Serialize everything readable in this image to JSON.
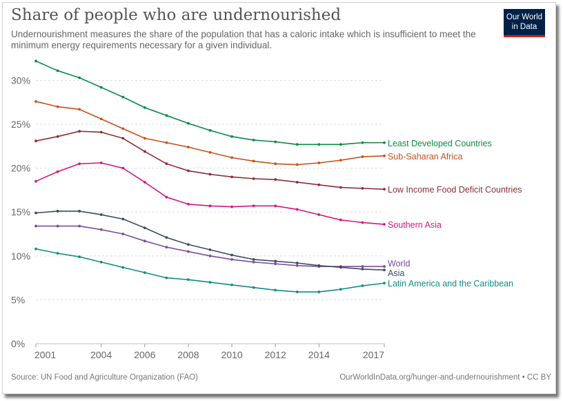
{
  "header": {
    "title": "Share of people who are undernourished",
    "subtitle": "Undernourishment measures the share of the population that has a caloric intake which is insufficient to meet the minimum energy requirements necessary for a given individual.",
    "logo_line1": "Our World",
    "logo_line2": "in Data"
  },
  "footer": {
    "source": "Source: UN Food and Agriculture Organization (FAO)",
    "credit": "OurWorldInData.org/hunger-and-undernourishment • CC BY"
  },
  "chart_data": {
    "type": "line",
    "title": "Share of people who are undernourished",
    "xlabel": "",
    "ylabel": "",
    "x": [
      2001,
      2002,
      2003,
      2004,
      2005,
      2006,
      2007,
      2008,
      2009,
      2010,
      2011,
      2012,
      2013,
      2014,
      2015,
      2016,
      2017
    ],
    "xlim": [
      2001,
      2017
    ],
    "ylim": [
      0,
      32
    ],
    "x_ticks": [
      "2001",
      "2004",
      "2006",
      "2008",
      "2010",
      "2012",
      "2014",
      "2017"
    ],
    "y_ticks": [
      "0%",
      "5%",
      "10%",
      "15%",
      "20%",
      "25%",
      "30%"
    ],
    "grid": "horizontal dashed",
    "legend": "labels at right end of lines",
    "series": [
      {
        "name": "Least Developed Countries",
        "color": "#0c8a45",
        "values": [
          32.2,
          31.1,
          30.3,
          29.2,
          28.1,
          26.9,
          26.0,
          25.1,
          24.3,
          23.6,
          23.2,
          23.0,
          22.7,
          22.7,
          22.7,
          22.9,
          22.9
        ]
      },
      {
        "name": "Sub-Saharan Africa",
        "color": "#c7501c",
        "values": [
          27.6,
          27.0,
          26.7,
          25.6,
          24.5,
          23.4,
          22.9,
          22.4,
          21.8,
          21.2,
          20.8,
          20.5,
          20.4,
          20.6,
          20.9,
          21.3,
          21.4
        ]
      },
      {
        "name": "Low Income Food Deficit Countries",
        "color": "#8c2e36",
        "values": [
          23.1,
          23.6,
          24.2,
          24.1,
          23.4,
          21.9,
          20.5,
          19.7,
          19.3,
          19.0,
          18.8,
          18.7,
          18.4,
          18.1,
          17.8,
          17.7,
          17.6
        ]
      },
      {
        "name": "Southern Asia",
        "color": "#d6157b",
        "values": [
          18.5,
          19.6,
          20.5,
          20.6,
          20.0,
          18.4,
          16.7,
          15.9,
          15.7,
          15.6,
          15.7,
          15.7,
          15.3,
          14.7,
          14.1,
          13.8,
          13.6
        ]
      },
      {
        "name": "World",
        "color": "#7d4b9c",
        "values": [
          13.4,
          13.4,
          13.4,
          13.0,
          12.5,
          11.7,
          11.0,
          10.5,
          10.0,
          9.6,
          9.3,
          9.1,
          8.9,
          8.8,
          8.8,
          8.8,
          8.8
        ]
      },
      {
        "name": "Asia",
        "color": "#3b4b65",
        "values": [
          14.9,
          15.1,
          15.1,
          14.7,
          14.2,
          13.2,
          12.1,
          11.3,
          10.7,
          10.1,
          9.6,
          9.4,
          9.2,
          8.9,
          8.7,
          8.5,
          8.4
        ]
      },
      {
        "name": "Latin America and the Caribbean",
        "color": "#0f8c85",
        "values": [
          10.8,
          10.3,
          9.9,
          9.3,
          8.7,
          8.1,
          7.5,
          7.3,
          7.0,
          6.7,
          6.4,
          6.1,
          5.9,
          5.9,
          6.2,
          6.6,
          6.9
        ]
      }
    ]
  }
}
